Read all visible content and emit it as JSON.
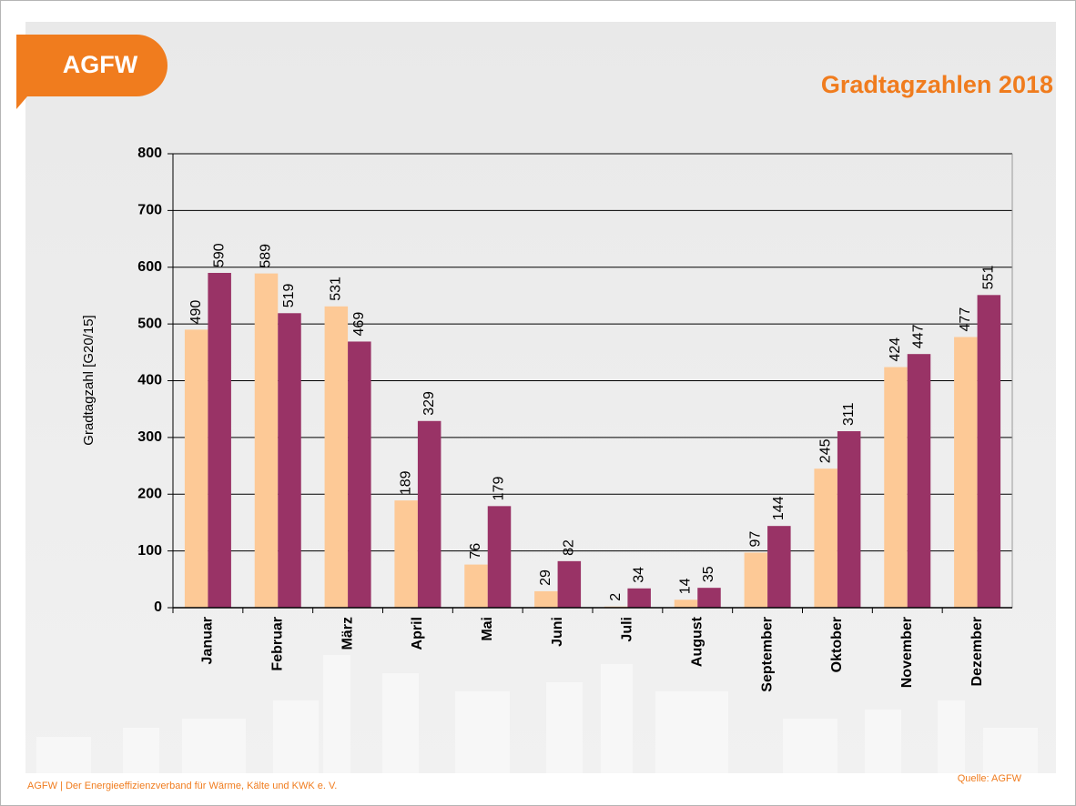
{
  "logo": "AGFW",
  "footer": "AGFW | Der Energieeffizienzverband für Wärme, Kälte und KWK e. V.",
  "source": "Quelle: AGFW",
  "chart_data": {
    "type": "bar",
    "title": "Gradtagzahlen 2018",
    "y_label": "Gradtagzahl [G20/15]",
    "categories": [
      "Januar",
      "Februar",
      "März",
      "April",
      "Mai",
      "Juni",
      "Juli",
      "August",
      "September",
      "Oktober",
      "November",
      "Dezember"
    ],
    "series": [
      {
        "color": "#fdc996",
        "values": [
          490,
          589,
          531,
          189,
          76,
          29,
          2,
          14,
          97,
          245,
          424,
          477
        ]
      },
      {
        "color": "#993366",
        "values": [
          590,
          519,
          469,
          329,
          179,
          82,
          34,
          35,
          144,
          311,
          447,
          551
        ]
      }
    ],
    "ylim": [
      0,
      800
    ],
    "yticks": [
      0,
      100,
      200,
      300,
      400,
      500,
      600,
      700,
      800
    ],
    "grid": true
  }
}
